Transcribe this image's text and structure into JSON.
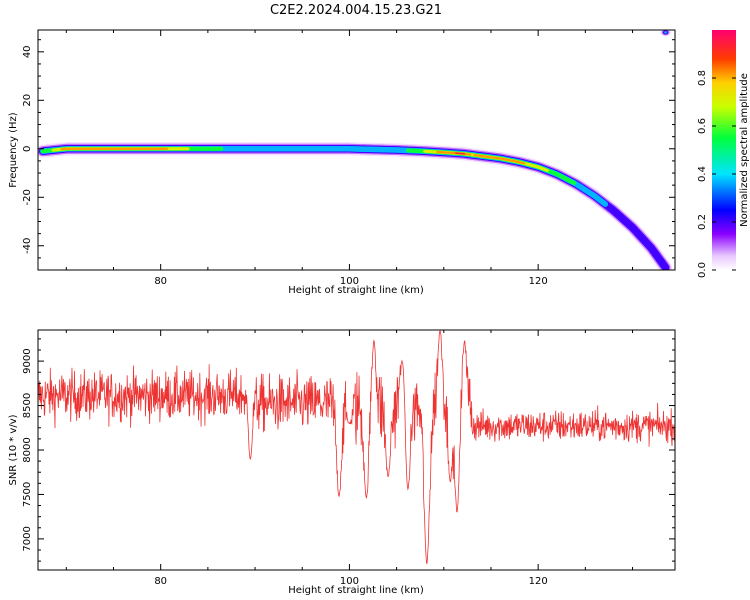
{
  "figure_title": "C2E2.2024.004.15.23.G21",
  "chart_data": [
    {
      "type": "heatmap",
      "title": "C2E2.2024.004.15.23.G21",
      "xlabel": "Height of straight line (km)",
      "ylabel": "Frequency (Hz)",
      "xlim": [
        67,
        134.5
      ],
      "ylim": [
        -50,
        49
      ],
      "x_ticks": [
        80,
        100,
        120
      ],
      "y_ticks": [
        -40,
        -20,
        0,
        20,
        40
      ],
      "colorbar": {
        "label": "Normalized spectral amplitude",
        "range": [
          0,
          1
        ],
        "ticks": [
          0.0,
          0.2,
          0.4,
          0.6,
          0.8
        ],
        "tick_labels": [
          "0.0",
          "0.2",
          "0.4",
          "0.6",
          "0.8"
        ],
        "colormap": [
          "#ffffff",
          "#e8c6ff",
          "#8a00ff",
          "#0000ff",
          "#00e5ff",
          "#00ff3c",
          "#c8ff00",
          "#ffd000",
          "#ff3c00",
          "#ff0070"
        ]
      },
      "ridge": {
        "x": [
          67.5,
          70,
          75,
          80,
          85,
          90,
          95,
          100,
          105,
          108,
          110,
          112,
          113,
          114,
          116,
          118,
          120,
          122,
          124,
          126,
          128,
          130,
          132,
          133.5
        ],
        "y": [
          -1,
          0,
          0,
          0,
          0,
          0,
          0,
          0,
          -0.5,
          -1,
          -1.5,
          -2,
          -2.5,
          -3,
          -4,
          -5.5,
          -7.5,
          -10.5,
          -14.5,
          -19.5,
          -25.5,
          -32.5,
          -41,
          -49
        ]
      },
      "ridge_amplitude": [
        0.55,
        0.9,
        0.92,
        0.85,
        0.6,
        0.45,
        0.45,
        0.5,
        0.45,
        0.7,
        0.9,
        0.95,
        0.8,
        0.9,
        0.9,
        0.85,
        0.75,
        0.65,
        0.55,
        0.45,
        0.4,
        0.35,
        0.3,
        0.3
      ],
      "corner_blob": {
        "x": 133.5,
        "y": 48,
        "amplitude": 0.3
      }
    },
    {
      "type": "line",
      "xlabel": "Height of straight line (km)",
      "ylabel": "SNR (10 * v/v)",
      "xlim": [
        67,
        134.5
      ],
      "ylim": [
        6650,
        9350
      ],
      "x_ticks": [
        80,
        100,
        120
      ],
      "y_ticks": [
        7000,
        7500,
        8000,
        8500,
        9000
      ],
      "line_color": "#ee3333",
      "envelope": [
        {
          "x_from": 67,
          "x_to": 90,
          "mean": 8610,
          "noise": 140
        },
        {
          "x_from": 90,
          "x_to": 98,
          "mean": 8520,
          "noise": 160
        },
        {
          "x_from": 98,
          "x_to": 113,
          "mean": 8480,
          "noise": 230
        },
        {
          "x_from": 113,
          "x_to": 134.5,
          "mean": 8270,
          "noise": 90
        }
      ],
      "features": [
        {
          "x": 89.5,
          "y": 7900,
          "w": 0.3
        },
        {
          "x": 98.9,
          "y": 7480,
          "w": 0.35
        },
        {
          "x": 100.0,
          "y": 8300,
          "w": 0.4
        },
        {
          "x": 101.8,
          "y": 7460,
          "w": 0.35
        },
        {
          "x": 102.6,
          "y": 9230,
          "w": 0.3
        },
        {
          "x": 104.1,
          "y": 7700,
          "w": 0.35
        },
        {
          "x": 105.7,
          "y": 9120,
          "w": 0.4
        },
        {
          "x": 106.2,
          "y": 7560,
          "w": 0.35
        },
        {
          "x": 108.2,
          "y": 6720,
          "w": 0.4
        },
        {
          "x": 109.6,
          "y": 9340,
          "w": 0.35
        },
        {
          "x": 110.7,
          "y": 7650,
          "w": 0.3
        },
        {
          "x": 111.4,
          "y": 7300,
          "w": 0.35
        },
        {
          "x": 112.2,
          "y": 9230,
          "w": 0.3
        }
      ]
    }
  ]
}
